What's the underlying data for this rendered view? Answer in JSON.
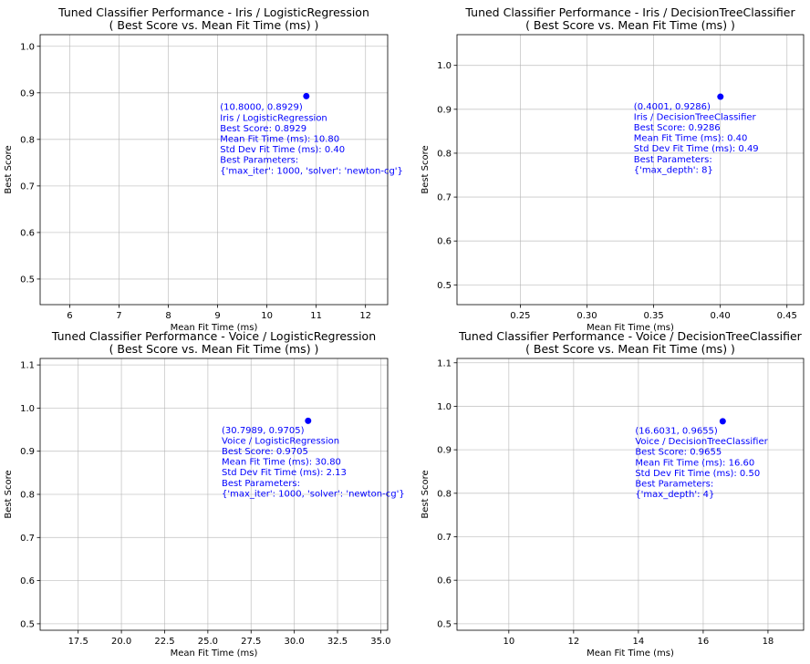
{
  "chart_data": [
    {
      "type": "scatter",
      "title": "Tuned Classifier Performance - Iris / LogisticRegression",
      "subtitle": "( Best Score vs. Mean Fit Time (ms) )",
      "xlabel": "Mean Fit Time (ms)",
      "ylabel": "Best Score",
      "xlim": [
        5.4,
        12.45
      ],
      "ylim": [
        0.445,
        1.025
      ],
      "xticks": [
        6,
        7,
        8,
        9,
        10,
        11,
        12
      ],
      "xtick_labels": [
        "6",
        "7",
        "8",
        "9",
        "10",
        "11",
        "12"
      ],
      "yticks": [
        0.5,
        0.6,
        0.7,
        0.8,
        0.9,
        1.0
      ],
      "ytick_labels": [
        "0.5",
        "0.6",
        "0.7",
        "0.8",
        "0.9",
        "1.0"
      ],
      "grid": true,
      "point_color": "#0000ff",
      "points": [
        {
          "x": 10.8,
          "y": 0.8929
        }
      ],
      "annotation": {
        "anchor_x": 9.05,
        "anchor_y": 0.863,
        "lines": [
          "(10.8000, 0.8929)",
          "Iris / LogisticRegression",
          "Best Score: 0.8929",
          "Mean Fit Time (ms): 10.80",
          "Std Dev Fit Time (ms): 0.40",
          "Best Parameters:",
          "{'max_iter': 1000, 'solver': 'newton-cg'}"
        ]
      }
    },
    {
      "type": "scatter",
      "title": "Tuned Classifier Performance - Iris / DecisionTreeClassifier",
      "subtitle": "( Best Score vs. Mean Fit Time (ms) )",
      "xlabel": "Mean Fit Time (ms)",
      "ylabel": "Best Score",
      "xlim": [
        0.2025,
        0.4625
      ],
      "ylim": [
        0.455,
        1.07
      ],
      "xticks": [
        0.25,
        0.3,
        0.35,
        0.4,
        0.45
      ],
      "xtick_labels": [
        "0.25",
        "0.30",
        "0.35",
        "0.40",
        "0.45"
      ],
      "yticks": [
        0.5,
        0.6,
        0.7,
        0.8,
        0.9,
        1.0
      ],
      "ytick_labels": [
        "0.5",
        "0.6",
        "0.7",
        "0.8",
        "0.9",
        "1.0"
      ],
      "grid": true,
      "point_color": "#0000ff",
      "points": [
        {
          "x": 0.4001,
          "y": 0.9286
        }
      ],
      "annotation": {
        "anchor_x": 0.3351,
        "anchor_y": 0.9,
        "lines": [
          "(0.4001, 0.9286)",
          "Iris / DecisionTreeClassifier",
          "Best Score: 0.9286",
          "Mean Fit Time (ms): 0.40",
          "Std Dev Fit Time (ms): 0.49",
          "Best Parameters:",
          "{'max_depth': 8}"
        ]
      }
    },
    {
      "type": "scatter",
      "title": "Tuned Classifier Performance - Voice / LogisticRegression",
      "subtitle": "( Best Score vs. Mean Fit Time (ms) )",
      "xlabel": "Mean Fit Time (ms)",
      "ylabel": "Best Score",
      "xlim": [
        15.3,
        35.4
      ],
      "ylim": [
        0.485,
        1.115
      ],
      "xticks": [
        17.5,
        20,
        22.5,
        25,
        27.5,
        30,
        32.5,
        35
      ],
      "xtick_labels": [
        "17.5",
        "20.0",
        "22.5",
        "25.0",
        "27.5",
        "30.0",
        "32.5",
        "35.0"
      ],
      "yticks": [
        0.5,
        0.6,
        0.7,
        0.8,
        0.9,
        1.0,
        1.1
      ],
      "ytick_labels": [
        "0.5",
        "0.6",
        "0.7",
        "0.8",
        "0.9",
        "1.0",
        "1.1"
      ],
      "grid": true,
      "point_color": "#0000ff",
      "points": [
        {
          "x": 30.7989,
          "y": 0.9705
        }
      ],
      "annotation": {
        "anchor_x": 25.8,
        "anchor_y": 0.942,
        "lines": [
          "(30.7989, 0.9705)",
          "Voice / LogisticRegression",
          "Best Score: 0.9705",
          "Mean Fit Time (ms): 30.80",
          "Std Dev Fit Time (ms): 2.13",
          "Best Parameters:",
          "{'max_iter': 1000, 'solver': 'newton-cg'}"
        ]
      }
    },
    {
      "type": "scatter",
      "title": "Tuned Classifier Performance - Voice / DecisionTreeClassifier",
      "subtitle": "( Best Score vs. Mean Fit Time (ms) )",
      "xlabel": "Mean Fit Time (ms)",
      "ylabel": "Best Score",
      "xlim": [
        8.4,
        19.1
      ],
      "ylim": [
        0.485,
        1.11
      ],
      "xticks": [
        10,
        12,
        14,
        16,
        18
      ],
      "xtick_labels": [
        "10",
        "12",
        "14",
        "16",
        "18"
      ],
      "yticks": [
        0.5,
        0.6,
        0.7,
        0.8,
        0.9,
        1.0,
        1.1
      ],
      "ytick_labels": [
        "0.5",
        "0.6",
        "0.7",
        "0.8",
        "0.9",
        "1.0",
        "1.1"
      ],
      "grid": true,
      "point_color": "#0000ff",
      "points": [
        {
          "x": 16.6031,
          "y": 0.9655
        }
      ],
      "annotation": {
        "anchor_x": 13.9,
        "anchor_y": 0.937,
        "lines": [
          "(16.6031, 0.9655)",
          "Voice / DecisionTreeClassifier",
          "Best Score: 0.9655",
          "Mean Fit Time (ms): 16.60",
          "Std Dev Fit Time (ms): 0.50",
          "Best Parameters:",
          "{'max_depth': 4}"
        ]
      }
    }
  ]
}
